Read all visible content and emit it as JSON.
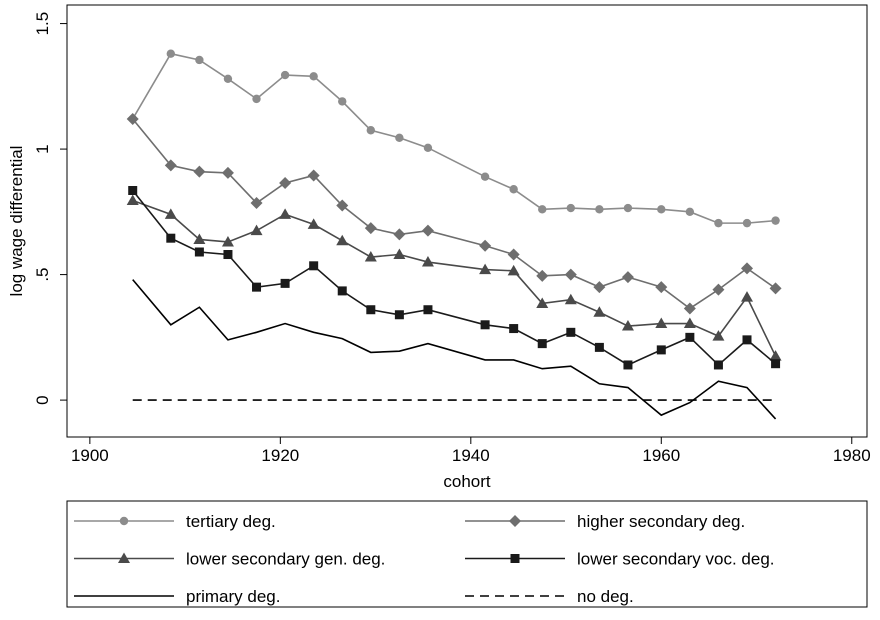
{
  "chart_data": {
    "type": "line",
    "x_label": "cohort",
    "y_label": "log wage differential",
    "x": [
      1904.5,
      1908.5,
      1911.5,
      1914.5,
      1917.5,
      1920.5,
      1923.5,
      1926.5,
      1929.5,
      1932.5,
      1935.5,
      1941.5,
      1944.5,
      1947.5,
      1950.5,
      1953.5,
      1956.5,
      1960,
      1963,
      1966,
      1969,
      1972
    ],
    "series": [
      {
        "name": "tertiary deg.",
        "color": "#8c8c8c",
        "marker": "circle",
        "dash": false,
        "values": [
          1.12,
          1.38,
          1.355,
          1.28,
          1.2,
          1.295,
          1.29,
          1.19,
          1.075,
          1.045,
          1.005,
          0.89,
          0.84,
          0.76,
          0.765,
          0.76,
          0.765,
          0.76,
          0.75,
          0.705,
          0.705,
          0.715
        ]
      },
      {
        "name": "higher secondary deg.",
        "color": "#6e6e6e",
        "marker": "diamond",
        "dash": false,
        "values": [
          1.12,
          0.935,
          0.91,
          0.905,
          0.785,
          0.865,
          0.895,
          0.775,
          0.685,
          0.66,
          0.675,
          0.615,
          0.58,
          0.495,
          0.5,
          0.45,
          0.49,
          0.45,
          0.365,
          0.44,
          0.525,
          0.445
        ]
      },
      {
        "name": "lower secondary gen. deg.",
        "color": "#4a4a4a",
        "marker": "triangle",
        "dash": false,
        "values": [
          0.795,
          0.74,
          0.64,
          0.63,
          0.675,
          0.74,
          0.7,
          0.635,
          0.57,
          0.58,
          0.55,
          0.52,
          0.515,
          0.385,
          0.4,
          0.35,
          0.295,
          0.305,
          0.305,
          0.255,
          0.41,
          0.175
        ]
      },
      {
        "name": "lower secondary voc. deg.",
        "color": "#1a1a1a",
        "marker": "square",
        "dash": false,
        "values": [
          0.835,
          0.645,
          0.59,
          0.58,
          0.45,
          0.465,
          0.535,
          0.435,
          0.36,
          0.34,
          0.36,
          0.3,
          0.285,
          0.225,
          0.27,
          0.21,
          0.14,
          0.2,
          0.25,
          0.14,
          0.24,
          0.145
        ]
      },
      {
        "name": "primary deg.",
        "color": "#000000",
        "marker": "none",
        "dash": false,
        "values": [
          0.48,
          0.3,
          0.37,
          0.24,
          0.27,
          0.305,
          0.27,
          0.245,
          0.19,
          0.195,
          0.225,
          0.16,
          0.16,
          0.125,
          0.135,
          0.065,
          0.05,
          -0.06,
          -0.01,
          0.075,
          0.05,
          -0.075
        ]
      },
      {
        "name": "no deg.",
        "color": "#000000",
        "marker": "none",
        "dash": true,
        "values": [
          0,
          0,
          0,
          0,
          0,
          0,
          0,
          0,
          0,
          0,
          0,
          0,
          0,
          0,
          0,
          0,
          0,
          0,
          0,
          0,
          0,
          0
        ]
      }
    ],
    "xlim": [
      1897.6,
      1981.6
    ],
    "xticks": [
      1900,
      1920,
      1940,
      1960,
      1980
    ],
    "ylim": [
      -0.147,
      1.574
    ],
    "yticks": [
      0,
      {
        "value": 0.5,
        "label": ".5"
      },
      1,
      1.5
    ],
    "grid": false,
    "legend": "bottom"
  }
}
